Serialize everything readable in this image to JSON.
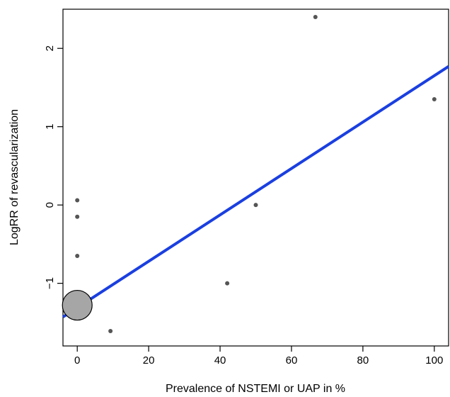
{
  "chart_data": {
    "type": "scatter",
    "title": "",
    "xlabel": "Prevalence of NSTEMI or UAP in %",
    "ylabel": "LogRR of revascularization",
    "xlim": [
      -4,
      104
    ],
    "ylim": [
      -1.8,
      2.5
    ],
    "xticks": [
      0,
      20,
      40,
      60,
      80,
      100
    ],
    "xtick_labels": [
      "0",
      "20",
      "40",
      "60",
      "80",
      "100"
    ],
    "yticks": [
      -1,
      0,
      1,
      2
    ],
    "ytick_labels": [
      "−1",
      "0",
      "1",
      "2"
    ],
    "grid": false,
    "legend": "none",
    "points": [
      {
        "x": 0,
        "y": 0.06,
        "weight": "small"
      },
      {
        "x": 0,
        "y": -0.15,
        "weight": "small"
      },
      {
        "x": 0,
        "y": -0.65,
        "weight": "small"
      },
      {
        "x": 0,
        "y": -1.28,
        "weight": "large"
      },
      {
        "x": 9.3,
        "y": -1.61,
        "weight": "small"
      },
      {
        "x": 42,
        "y": -1.0,
        "weight": "small"
      },
      {
        "x": 50,
        "y": 0.0,
        "weight": "small"
      },
      {
        "x": 66.7,
        "y": 2.4,
        "weight": "small"
      },
      {
        "x": 100,
        "y": 1.35,
        "weight": "small"
      }
    ],
    "regression_line": {
      "x": [
        -4,
        104
      ],
      "y": [
        -1.43,
        1.77
      ]
    },
    "colors": {
      "line": "#1a3fe0",
      "large_point": "#a6a6a6",
      "small_point": "#555555"
    }
  }
}
